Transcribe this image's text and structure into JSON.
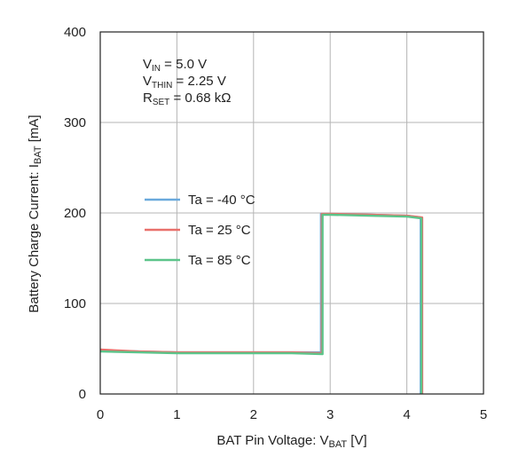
{
  "chart_data": {
    "type": "line",
    "xlabel": {
      "prefix": "BAT Pin Voltage: V",
      "sub": "BAT",
      "suffix": " [V]"
    },
    "ylabel": {
      "prefix": "Battery Charge Current: I",
      "sub": "BAT",
      "suffix": " [mA]"
    },
    "xlim": [
      0,
      5
    ],
    "ylim": [
      0,
      400
    ],
    "xticks": [
      0,
      1,
      2,
      3,
      4,
      5
    ],
    "yticks": [
      0,
      100,
      200,
      300,
      400
    ],
    "grid": true,
    "conditions": [
      {
        "main": "V",
        "sub": "IN",
        "value": " = 5.0 V"
      },
      {
        "main": "V",
        "sub": "THIN",
        "value": " = 2.25 V"
      },
      {
        "main": "R",
        "sub": "SET",
        "value": "  = 0.68 kΩ"
      }
    ],
    "legend_position": "center-left",
    "series": [
      {
        "name": "Ta =  -40 °C",
        "color": "#6aa9dc",
        "x": [
          0,
          0.5,
          1.0,
          1.5,
          2.0,
          2.5,
          2.88,
          2.88,
          3.0,
          3.5,
          4.0,
          4.18,
          4.18
        ],
        "y": [
          48,
          47,
          46,
          46,
          46,
          46,
          46,
          199,
          199,
          198,
          197,
          195,
          0
        ]
      },
      {
        "name": "Ta =  25 °C",
        "color": "#e9706b",
        "x": [
          0,
          0.5,
          1.0,
          1.5,
          2.0,
          2.5,
          2.89,
          2.89,
          3.0,
          3.5,
          4.0,
          4.2,
          4.2
        ],
        "y": [
          49,
          47,
          46,
          46,
          46,
          46,
          45,
          199,
          199,
          198,
          197,
          195,
          0
        ]
      },
      {
        "name": "Ta =  85 °C",
        "color": "#5cc48a",
        "x": [
          0,
          0.5,
          1.0,
          1.5,
          2.0,
          2.5,
          2.9,
          2.9,
          3.0,
          3.5,
          4.0,
          4.19,
          4.19
        ],
        "y": [
          47,
          46,
          45,
          45,
          45,
          45,
          44,
          198,
          198,
          197,
          196,
          194,
          0
        ]
      }
    ]
  }
}
